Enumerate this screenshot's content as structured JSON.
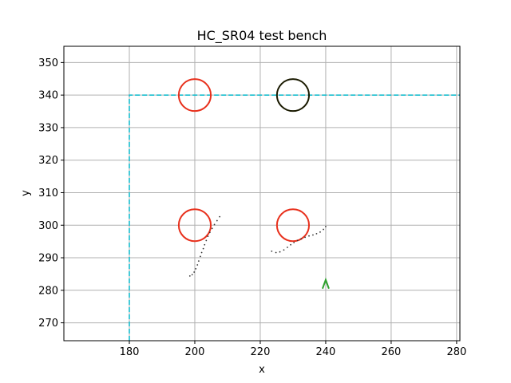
{
  "chart_data": {
    "type": "scatter",
    "title": "HC_SR04 test bench",
    "xlabel": "x",
    "ylabel": "y",
    "xlim": [
      160,
      281
    ],
    "ylim": [
      264.5,
      355
    ],
    "xticks": [
      180,
      200,
      220,
      240,
      260,
      280
    ],
    "yticks": [
      270,
      280,
      290,
      300,
      310,
      320,
      330,
      340,
      350
    ],
    "grid": true,
    "colors": {
      "boundary": "#17becf",
      "obstacle": "#e8301c",
      "obstacle_dark": "#1a1a00",
      "points": "#333333",
      "robot": "#2ca02c",
      "grid": "#b0b0b0"
    },
    "boundary": {
      "style": "dashed",
      "x": [
        180,
        180,
        281
      ],
      "y": [
        264.5,
        340,
        340
      ]
    },
    "circles": [
      {
        "cx": 200,
        "cy": 340,
        "r": 4.9,
        "color": "obstacle"
      },
      {
        "cx": 230,
        "cy": 340,
        "r": 4.9,
        "color": "obstacle_dark"
      },
      {
        "cx": 200,
        "cy": 300,
        "r": 4.9,
        "color": "obstacle"
      },
      {
        "cx": 230,
        "cy": 300,
        "r": 4.9,
        "color": "obstacle"
      }
    ],
    "point_clouds": [
      {
        "x": [
          198.5,
          199.2,
          199.8,
          200.3,
          200.8,
          201.2,
          201.7,
          202.1,
          202.6,
          203.0,
          203.5,
          204.0,
          204.6,
          205.3,
          206.0,
          206.8,
          207.6
        ],
        "y": [
          284.4,
          284.8,
          285.6,
          286.6,
          287.8,
          289.0,
          290.4,
          291.6,
          292.8,
          294.0,
          295.3,
          296.6,
          297.8,
          299.0,
          300.2,
          301.4,
          302.6
        ]
      },
      {
        "x": [
          223.5,
          224.8,
          226.0,
          227.2,
          228.3,
          229.3,
          230.3,
          231.4,
          232.5,
          233.7,
          234.9,
          236.1,
          237.2,
          238.3,
          239.3,
          240.0
        ],
        "y": [
          292.0,
          291.6,
          291.8,
          292.4,
          293.2,
          294.0,
          294.7,
          295.3,
          295.8,
          296.3,
          296.7,
          297.0,
          297.4,
          297.9,
          298.7,
          299.6
        ]
      }
    ],
    "robot": {
      "x": 240,
      "y": 281,
      "marker": "arrow-up"
    }
  }
}
